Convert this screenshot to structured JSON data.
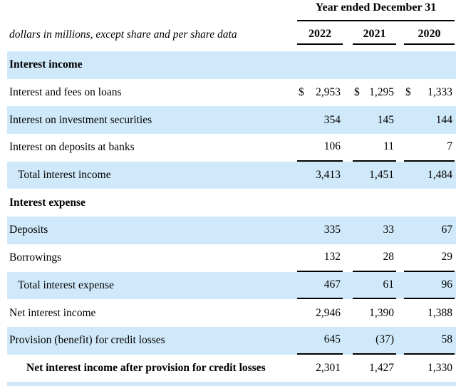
{
  "table": {
    "period_header": "Year ended December 31",
    "caption": "dollars in millions, except share and per share data",
    "years": [
      "2022",
      "2021",
      "2020"
    ],
    "currency_symbol": "$",
    "colors": {
      "row_highlight": "#d0e9fa",
      "rule_line": "#000000"
    },
    "rows": [
      {
        "label": "Interest income",
        "type": "section"
      },
      {
        "label": "Interest and fees on loans",
        "values": [
          "2,953",
          "1,295",
          "1,333"
        ],
        "dollar": true
      },
      {
        "label": "Interest on investment securities",
        "values": [
          "354",
          "145",
          "144"
        ]
      },
      {
        "label": "Interest on deposits at banks",
        "values": [
          "106",
          "11",
          "7"
        ],
        "underline": true
      },
      {
        "label": "Total interest income",
        "values": [
          "3,413",
          "1,451",
          "1,484"
        ],
        "indent": 1
      },
      {
        "label": "Interest expense",
        "type": "section"
      },
      {
        "label": "Deposits",
        "values": [
          "335",
          "33",
          "67"
        ]
      },
      {
        "label": "Borrowings",
        "values": [
          "132",
          "28",
          "29"
        ],
        "underline": true
      },
      {
        "label": "Total interest expense",
        "values": [
          "467",
          "61",
          "96"
        ],
        "indent": 1,
        "underline": true
      },
      {
        "label": "Net interest income",
        "values": [
          "2,946",
          "1,390",
          "1,388"
        ]
      },
      {
        "label": "Provision (benefit) for credit losses",
        "values": [
          "645",
          "(37)",
          "58"
        ],
        "underline": true
      },
      {
        "label": "Net interest income after provision for credit losses",
        "values": [
          "2,301",
          "1,427",
          "1,330"
        ],
        "indent": 2,
        "bold": true
      }
    ]
  }
}
